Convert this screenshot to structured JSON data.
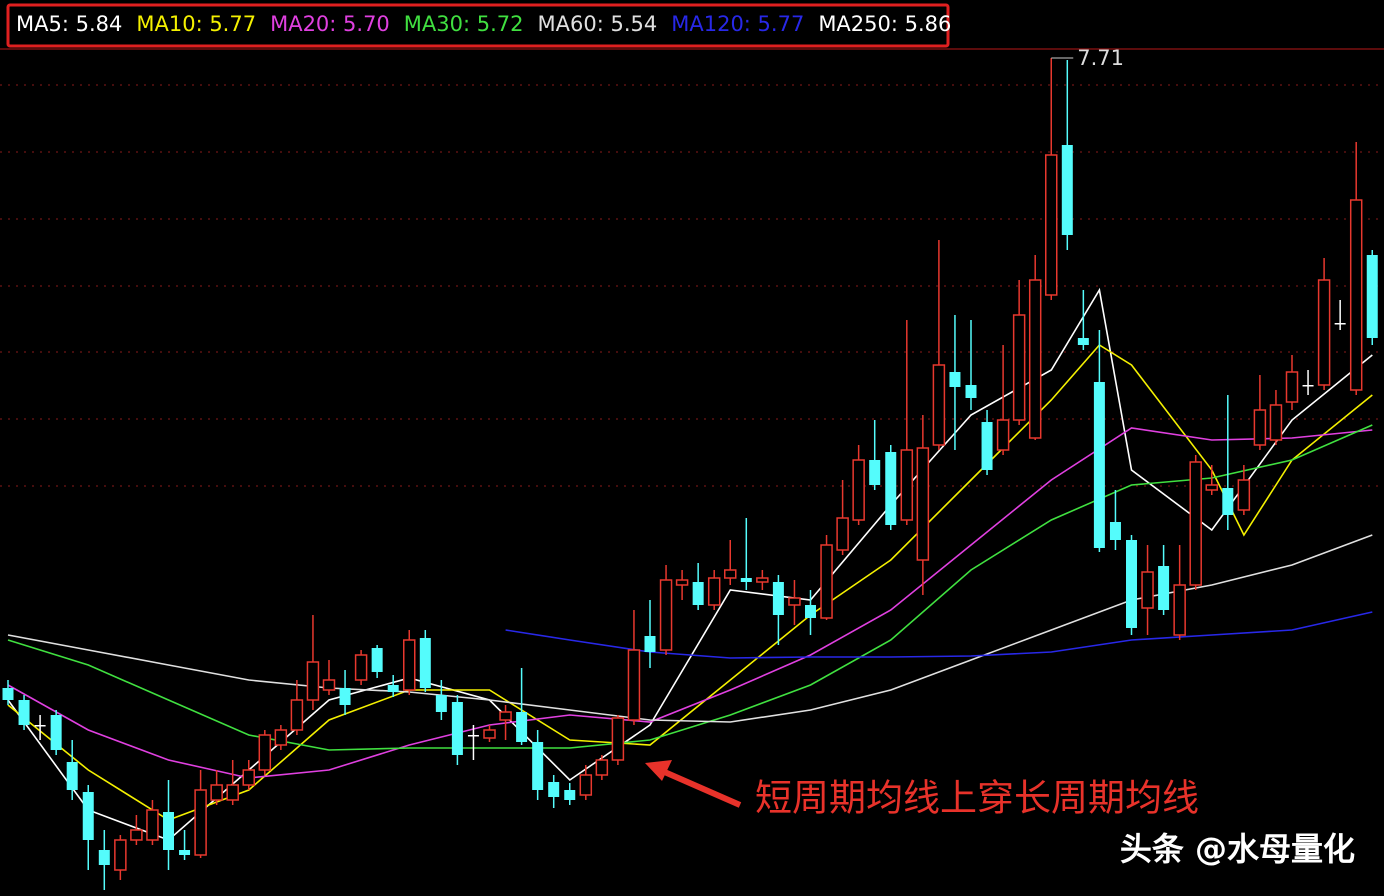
{
  "chart_data": {
    "type": "candlestick",
    "ylim": [
      3.52,
      8.0
    ],
    "yticks": [
      7.575,
      7.24,
      6.905,
      6.57,
      6.24,
      5.905,
      5.57
    ],
    "grid": true,
    "up_color": "#e8382e",
    "down_color": "#54fcfc",
    "flat_color": "#ffffff",
    "legend": [
      {
        "text": "MA5: 5.84",
        "color": "#ffffff"
      },
      {
        "text": "MA10: 5.77",
        "color": "#f4f000"
      },
      {
        "text": "MA20: 5.70",
        "color": "#e040e0"
      },
      {
        "text": "MA30: 5.72",
        "color": "#40e040"
      },
      {
        "text": "MA60: 5.54",
        "color": "#e0e0e0"
      },
      {
        "text": "MA120: 5.77",
        "color": "#2828e8"
      },
      {
        "text": "MA250: 5.86",
        "color": "#ffffff"
      }
    ],
    "open": [
      4.56,
      4.5,
      4.375,
      4.425,
      4.19,
      4.04,
      3.75,
      3.65,
      3.8,
      3.8,
      3.94,
      3.75,
      3.725,
      4.0,
      4.0,
      4.075,
      4.15,
      4.275,
      4.35,
      4.5,
      4.55,
      4.56,
      4.6,
      4.76,
      4.575,
      4.55,
      4.81,
      4.525,
      4.49,
      4.325,
      4.31,
      4.4,
      4.44,
      4.29,
      4.09,
      4.05,
      4.025,
      4.125,
      4.2,
      4.4,
      4.82,
      4.75,
      5.075,
      5.09,
      4.975,
      5.11,
      5.11,
      5.09,
      5.09,
      4.975,
      4.975,
      4.91,
      5.25,
      5.4,
      5.7,
      5.74,
      5.4,
      5.2,
      5.775,
      6.14,
      6.075,
      5.89,
      5.75,
      5.9,
      5.81,
      6.525,
      7.275,
      6.31,
      6.09,
      5.39,
      5.3,
      4.96,
      5.17,
      4.825,
      5.075,
      5.55,
      5.56,
      5.45,
      5.775,
      5.8,
      5.99,
      6.075,
      6.075,
      6.385,
      6.05,
      6.725
    ],
    "high": [
      4.6,
      4.525,
      4.425,
      4.45,
      4.3,
      4.075,
      3.85,
      3.825,
      3.925,
      4.0,
      4.1,
      3.85,
      4.15,
      4.15,
      4.2,
      4.2,
      4.35,
      4.375,
      4.6,
      4.925,
      4.7,
      4.65,
      4.75,
      4.775,
      4.625,
      4.85,
      4.85,
      4.6,
      4.525,
      4.375,
      4.375,
      4.475,
      4.66,
      4.35,
      4.125,
      4.085,
      4.175,
      4.225,
      4.425,
      4.95,
      5.0,
      5.175,
      5.15,
      5.185,
      5.15,
      5.3,
      5.41,
      5.15,
      5.125,
      5.1,
      5.05,
      5.325,
      5.6,
      5.775,
      5.9,
      5.775,
      6.4,
      5.925,
      6.8,
      6.425,
      6.4,
      5.95,
      6.275,
      6.6,
      6.725,
      7.71,
      7.7,
      6.55,
      6.35,
      5.55,
      5.325,
      5.275,
      5.275,
      5.275,
      5.725,
      5.675,
      6.025,
      5.675,
      6.125,
      6.05,
      6.225,
      6.15,
      6.71,
      6.5,
      7.29,
      6.75
    ],
    "low": [
      4.475,
      4.35,
      4.3,
      4.225,
      4.0,
      3.65,
      3.55,
      3.6,
      3.775,
      3.775,
      3.65,
      3.7,
      3.71,
      3.975,
      3.975,
      4.05,
      4.125,
      4.25,
      4.325,
      4.45,
      4.525,
      4.425,
      4.575,
      4.61,
      4.515,
      4.525,
      4.54,
      4.4,
      4.175,
      4.2,
      4.29,
      4.3,
      4.275,
      4.0,
      3.96,
      3.975,
      4.0,
      4.1,
      4.175,
      4.375,
      4.66,
      4.725,
      5.0,
      4.95,
      4.95,
      5.075,
      5.05,
      5.05,
      4.775,
      4.875,
      4.825,
      4.9,
      5.225,
      5.375,
      5.55,
      5.35,
      5.375,
      5.025,
      5.75,
      5.75,
      5.95,
      5.625,
      5.725,
      5.875,
      5.8,
      6.5,
      6.75,
      6.25,
      5.24,
      5.25,
      4.825,
      4.825,
      4.925,
      4.8,
      5.05,
      5.525,
      5.35,
      5.425,
      5.75,
      5.775,
      5.95,
      6.025,
      6.05,
      6.35,
      6.025,
      6.275
    ],
    "close": [
      4.5,
      4.375,
      4.375,
      4.25,
      4.05,
      3.8,
      3.675,
      3.8,
      3.85,
      3.95,
      3.75,
      3.725,
      4.05,
      4.075,
      4.075,
      4.15,
      4.325,
      4.35,
      4.5,
      4.69,
      4.6,
      4.475,
      4.725,
      4.64,
      4.54,
      4.8,
      4.56,
      4.44,
      4.225,
      4.325,
      4.35,
      4.44,
      4.29,
      4.05,
      4.015,
      4.0,
      4.125,
      4.2,
      4.41,
      4.75,
      4.74,
      5.1,
      5.1,
      4.975,
      5.11,
      5.15,
      5.09,
      5.11,
      4.925,
      5.01,
      4.91,
      5.275,
      5.41,
      5.7,
      5.575,
      5.375,
      5.75,
      5.76,
      6.175,
      6.065,
      6.01,
      5.65,
      5.9,
      6.425,
      6.6,
      7.225,
      6.825,
      6.275,
      5.26,
      5.3,
      4.86,
      5.14,
      4.95,
      5.075,
      5.69,
      5.575,
      5.425,
      5.6,
      5.95,
      5.975,
      6.14,
      6.075,
      6.6,
      6.385,
      7.0,
      6.31
    ],
    "series": [
      {
        "color": "#ffffff",
        "x": [
          0,
          5,
          10,
          15,
          20,
          25,
          30,
          35,
          40,
          45,
          50,
          55,
          60,
          65,
          68,
          70,
          75,
          80,
          85
        ],
        "values": [
          4.5,
          3.95,
          3.8,
          4.15,
          4.5,
          4.61,
          4.5,
          4.1,
          4.375,
          5.05,
          5.0,
          5.475,
          5.925,
          6.15,
          6.55,
          5.65,
          5.35,
          5.9,
          6.225
        ]
      },
      {
        "color": "#f4f000",
        "x": [
          0,
          5,
          10,
          15,
          20,
          25,
          30,
          35,
          40,
          45,
          50,
          55,
          60,
          65,
          68,
          70,
          75,
          77,
          80,
          85
        ],
        "values": [
          4.475,
          4.15,
          3.9,
          4.05,
          4.4,
          4.55,
          4.55,
          4.3,
          4.275,
          4.6,
          4.925,
          5.2,
          5.6,
          6.0,
          6.275,
          6.175,
          5.65,
          5.325,
          5.7,
          6.025
        ]
      },
      {
        "color": "#e040e0",
        "x": [
          0,
          5,
          10,
          15,
          20,
          25,
          30,
          35,
          40,
          45,
          50,
          55,
          60,
          65,
          70,
          75,
          80,
          85
        ],
        "values": [
          4.575,
          4.35,
          4.2,
          4.11,
          4.15,
          4.275,
          4.375,
          4.425,
          4.39,
          4.55,
          4.725,
          4.95,
          5.275,
          5.6,
          5.86,
          5.8,
          5.81,
          5.85
        ]
      },
      {
        "color": "#40e040",
        "x": [
          0,
          5,
          10,
          15,
          20,
          25,
          30,
          35,
          40,
          45,
          50,
          55,
          60,
          65,
          70,
          75,
          80,
          85
        ],
        "values": [
          4.8,
          4.675,
          4.5,
          4.325,
          4.25,
          4.26,
          4.26,
          4.26,
          4.3,
          4.425,
          4.575,
          4.8,
          5.15,
          5.4,
          5.575,
          5.61,
          5.7,
          5.875
        ]
      },
      {
        "color": "#e0e0e0",
        "x": [
          0,
          5,
          10,
          15,
          20,
          25,
          30,
          35,
          40,
          45,
          50,
          55,
          60,
          65,
          70,
          75,
          80,
          85
        ],
        "values": [
          4.825,
          4.75,
          4.675,
          4.6,
          4.56,
          4.54,
          4.5,
          4.45,
          4.4,
          4.39,
          4.45,
          4.55,
          4.7,
          4.85,
          5.0,
          5.075,
          5.175,
          5.325
        ]
      },
      {
        "color": "#2828e8",
        "x": [
          31,
          35,
          40,
          45,
          50,
          55,
          60,
          65,
          70,
          75,
          80,
          85
        ],
        "values": [
          4.85,
          4.8,
          4.74,
          4.71,
          4.715,
          4.715,
          4.72,
          4.74,
          4.8,
          4.825,
          4.85,
          4.94
        ]
      }
    ],
    "annotation": "短周期均线上穿长周期均线",
    "watermark": "头条 @水母量化"
  }
}
